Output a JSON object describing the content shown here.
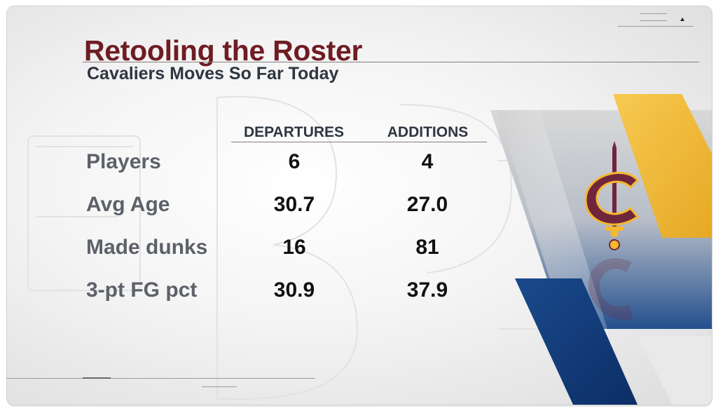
{
  "title": "Retooling the Roster",
  "subtitle": "Cavaliers Moves So Far Today",
  "columns": [
    "DEPARTURES",
    "ADDITIONS"
  ],
  "rows": [
    {
      "label": "Players",
      "departures": "6",
      "additions": "4"
    },
    {
      "label": "Avg Age",
      "departures": "30.7",
      "additions": "27.0"
    },
    {
      "label": "Made dunks",
      "departures": "16",
      "additions": "81"
    },
    {
      "label": "3-pt FG pct",
      "departures": "30.9",
      "additions": "37.9"
    }
  ],
  "colors": {
    "title": "#6f1c23",
    "subtitle": "#2f3640",
    "row_label": "#5d6169",
    "value": "#111111",
    "wine": "#6f263d",
    "gold": "#f5b82e",
    "navy": "#0f3b7a"
  },
  "logo": "cavaliers-sword-c-logo"
}
